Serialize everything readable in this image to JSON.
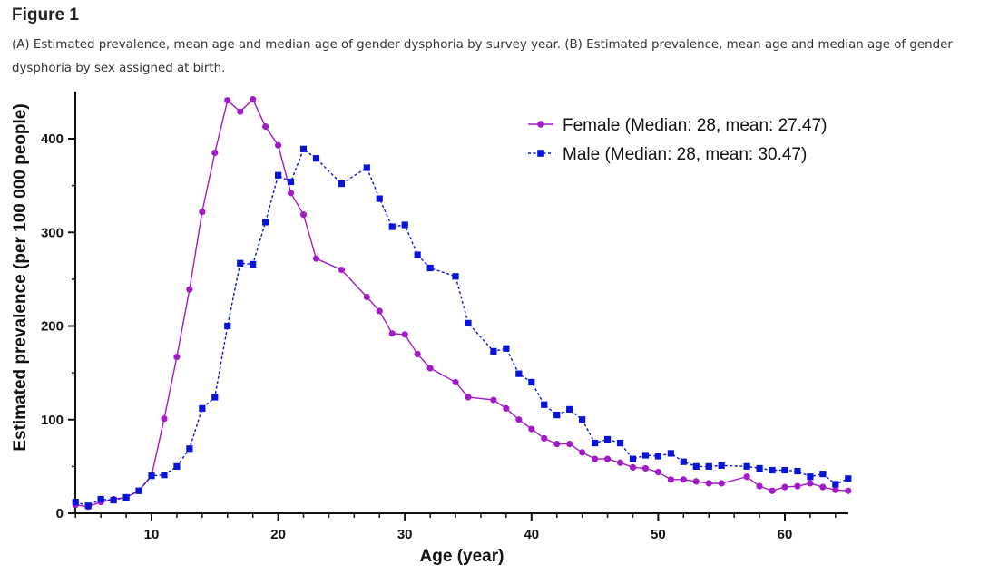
{
  "figure": {
    "heading": "Figure 1",
    "caption": "(A) Estimated prevalence, mean age and median age of gender dysphoria by survey year. (B) Estimated prevalence, mean age and median age of gender dysphoria by sex assigned at birth."
  },
  "chart_data": {
    "type": "line",
    "title": "",
    "xlabel": "Age (year)",
    "ylabel": "Estimated prevalence (per 100 000 people)",
    "xlim": [
      4,
      65
    ],
    "ylim": [
      0,
      450
    ],
    "xticks": [
      10,
      20,
      30,
      40,
      50,
      60
    ],
    "yticks": [
      0,
      100,
      200,
      300,
      400
    ],
    "grid": false,
    "legend_position": "top-right",
    "series": [
      {
        "name": "Female (Median: 28, mean: 27.47)",
        "color": "#a11bc8",
        "marker": "circle",
        "line_style": "solid",
        "x": [
          4,
          5,
          6,
          7,
          8,
          9,
          10,
          11,
          12,
          13,
          14,
          15,
          16,
          17,
          18,
          19,
          20,
          21,
          22,
          23,
          25,
          27,
          28,
          29,
          30,
          31,
          32,
          34,
          35,
          37,
          38,
          39,
          40,
          41,
          42,
          43,
          44,
          45,
          46,
          47,
          48,
          49,
          50,
          51,
          52,
          53,
          54,
          55,
          57,
          58,
          59,
          60,
          61,
          62,
          63,
          64,
          65
        ],
        "y": [
          9,
          7,
          12,
          15,
          17,
          24,
          40,
          101,
          167,
          239,
          322,
          385,
          441,
          429,
          442,
          413,
          393,
          342,
          319,
          272,
          260,
          231,
          216,
          192,
          191,
          170,
          155,
          140,
          124,
          121,
          112,
          100,
          90,
          80,
          74,
          74,
          65,
          58,
          58,
          54,
          49,
          48,
          44,
          36,
          36,
          34,
          32,
          32,
          39,
          29,
          24,
          28,
          29,
          32,
          28,
          25,
          24
        ]
      },
      {
        "name": "Male (Median: 28, mean: 30.47)",
        "color": "#0a14d9",
        "marker": "square",
        "line_style": "dashed",
        "x": [
          4,
          5,
          6,
          7,
          8,
          9,
          10,
          11,
          12,
          13,
          14,
          15,
          16,
          17,
          18,
          19,
          20,
          21,
          22,
          23,
          25,
          27,
          28,
          29,
          30,
          31,
          32,
          34,
          35,
          37,
          38,
          39,
          40,
          41,
          42,
          43,
          44,
          45,
          46,
          47,
          48,
          49,
          50,
          51,
          52,
          53,
          54,
          55,
          57,
          58,
          59,
          60,
          61,
          62,
          63,
          64,
          65
        ],
        "y": [
          12,
          8,
          15,
          14,
          17,
          24,
          40,
          41,
          50,
          69,
          112,
          124,
          200,
          267,
          266,
          311,
          361,
          354,
          389,
          379,
          352,
          369,
          336,
          306,
          308,
          276,
          262,
          253,
          203,
          173,
          176,
          149,
          140,
          116,
          105,
          111,
          100,
          75,
          79,
          75,
          58,
          62,
          61,
          64,
          55,
          50,
          50,
          51,
          50,
          48,
          46,
          46,
          45,
          39,
          42,
          31,
          37
        ]
      }
    ]
  }
}
